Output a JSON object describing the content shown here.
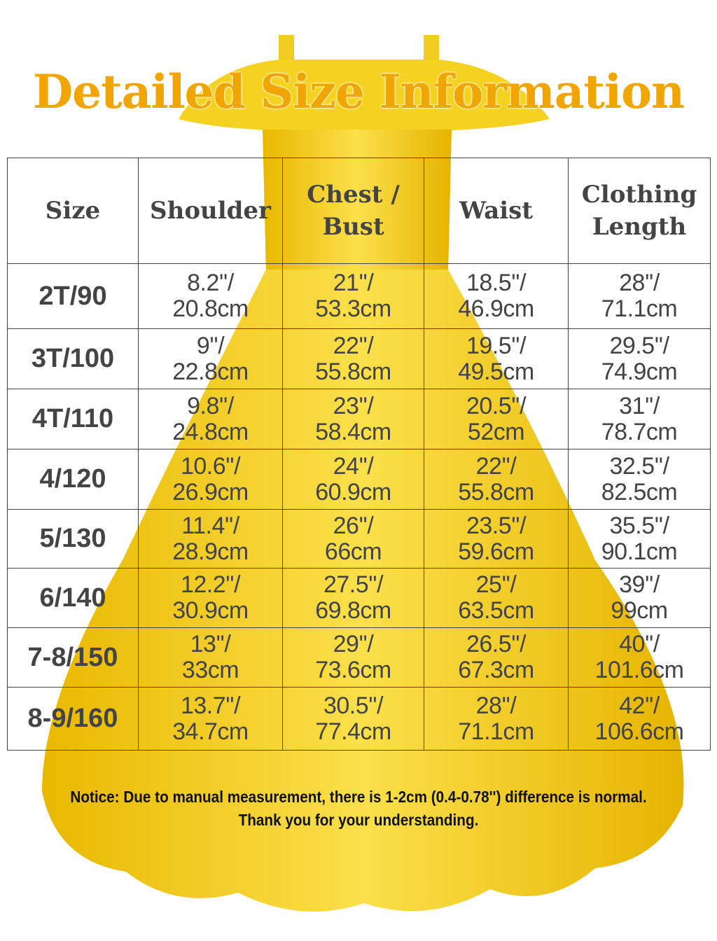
{
  "title": "Detailed Size Information",
  "colors": {
    "title": "#f0a500",
    "dress": "#f7d21a",
    "grid": "#444444"
  },
  "table": {
    "headers": [
      "Size",
      "Shoulder",
      "Chest / Bust",
      "Waist",
      "Clothing Length"
    ],
    "rows": [
      [
        "2T/90",
        "8.2''/ 20.8cm",
        "21''/ 53.3cm",
        "18.5''/ 46.9cm",
        "28''/ 71.1cm"
      ],
      [
        "3T/100",
        "9''/ 22.8cm",
        "22''/ 55.8cm",
        "19.5''/ 49.5cm",
        "29.5''/ 74.9cm"
      ],
      [
        "4T/110",
        "9.8''/ 24.8cm",
        "23''/ 58.4cm",
        "20.5''/ 52cm",
        "31''/ 78.7cm"
      ],
      [
        "4/120",
        "10.6''/ 26.9cm",
        "24''/ 60.9cm",
        "22''/ 55.8cm",
        "32.5''/ 82.5cm"
      ],
      [
        "5/130",
        "11.4''/ 28.9cm",
        "26''/ 66cm",
        "23.5''/ 59.6cm",
        "35.5''/ 90.1cm"
      ],
      [
        "6/140",
        "12.2''/ 30.9cm",
        "27.5''/ 69.8cm",
        "25''/ 63.5cm",
        "39''/ 99cm"
      ],
      [
        "7-8/150",
        "13''/ 33cm",
        "29''/ 73.6cm",
        "26.5''/ 67.3cm",
        "40''/ 101.6cm"
      ],
      [
        "8-9/160",
        "13.7''/ 34.7cm",
        "30.5''/ 77.4cm",
        "28''/ 71.1cm",
        "42''/ 106.6cm"
      ]
    ]
  },
  "notice": {
    "line1": "Notice: Due to manual measurement, there is 1-2cm (0.4-0.78'') difference is normal.",
    "line2": "Thank you for your understanding."
  }
}
